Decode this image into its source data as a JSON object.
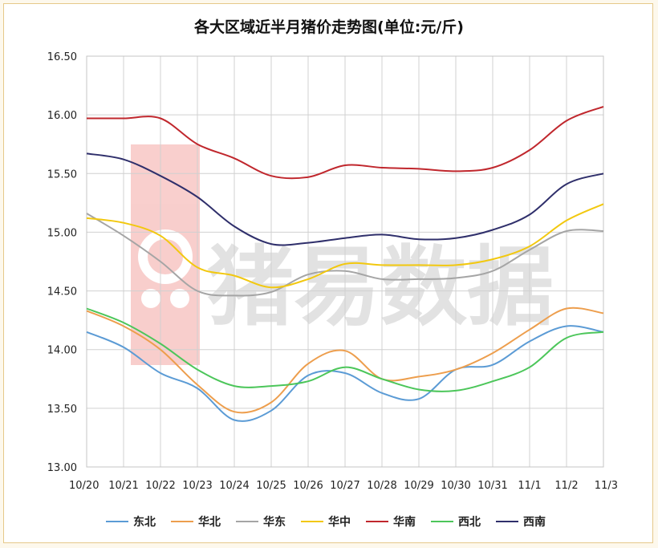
{
  "chart_data": {
    "type": "line",
    "title": "各大区域近半月猪价走势图(单位:元/斤)",
    "xlabel": "",
    "ylabel": "",
    "categories": [
      "10/20",
      "10/21",
      "10/22",
      "10/23",
      "10/24",
      "10/25",
      "10/26",
      "10/27",
      "10/28",
      "10/29",
      "10/30",
      "10/31",
      "11/1",
      "11/2",
      "11/3"
    ],
    "x_tick_labels": [
      "10/20",
      "10/21",
      "10/22",
      "10/23",
      "10/24",
      "10/25",
      "10/26",
      "10/27",
      "10/28",
      "10/29",
      "10/30",
      "10/31",
      "11/1",
      "11/2",
      "11/3"
    ],
    "y_tick_labels": [
      "16.50",
      "16.00",
      "15.50",
      "15.00",
      "14.50",
      "14.00",
      "13.50",
      "13.00"
    ],
    "ylim": [
      13.0,
      16.5
    ],
    "y_ticks": [
      16.5,
      16.0,
      15.5,
      15.0,
      14.5,
      14.0,
      13.5,
      13.0
    ],
    "grid": true,
    "legend_position": "bottom",
    "series": [
      {
        "name": "东北",
        "color": "#5b9bd5",
        "values": [
          14.15,
          14.02,
          13.8,
          13.67,
          13.4,
          13.48,
          13.78,
          13.8,
          13.63,
          13.58,
          13.83,
          13.87,
          14.07,
          14.2,
          14.15
        ]
      },
      {
        "name": "华北",
        "color": "#ed9e4d",
        "values": [
          14.33,
          14.2,
          14.0,
          13.7,
          13.47,
          13.55,
          13.88,
          13.99,
          13.75,
          13.77,
          13.83,
          13.97,
          14.17,
          14.35,
          14.31
        ]
      },
      {
        "name": "华东",
        "color": "#a5a5a5",
        "values": [
          15.16,
          14.97,
          14.75,
          14.5,
          14.46,
          14.49,
          14.64,
          14.67,
          14.6,
          14.6,
          14.61,
          14.67,
          14.85,
          15.01,
          15.01
        ]
      },
      {
        "name": "华中",
        "color": "#f2c80f",
        "values": [
          15.12,
          15.08,
          14.97,
          14.7,
          14.63,
          14.53,
          14.6,
          14.73,
          14.72,
          14.72,
          14.72,
          14.77,
          14.88,
          15.1,
          15.24
        ]
      },
      {
        "name": "华南",
        "color": "#c0272d",
        "values": [
          15.97,
          15.97,
          15.97,
          15.75,
          15.63,
          15.48,
          15.47,
          15.57,
          15.55,
          15.54,
          15.52,
          15.55,
          15.7,
          15.95,
          16.07
        ]
      },
      {
        "name": "西北",
        "color": "#4cc65a",
        "values": [
          14.35,
          14.23,
          14.05,
          13.83,
          13.69,
          13.69,
          13.73,
          13.85,
          13.75,
          13.66,
          13.65,
          13.73,
          13.85,
          14.1,
          14.15
        ]
      },
      {
        "name": "西南",
        "color": "#2f2f6b",
        "values": [
          15.67,
          15.62,
          15.48,
          15.3,
          15.05,
          14.9,
          14.91,
          14.95,
          14.98,
          14.94,
          14.95,
          15.02,
          15.15,
          15.41,
          15.5
        ]
      }
    ]
  },
  "watermark": {
    "text": "猪易数据"
  }
}
